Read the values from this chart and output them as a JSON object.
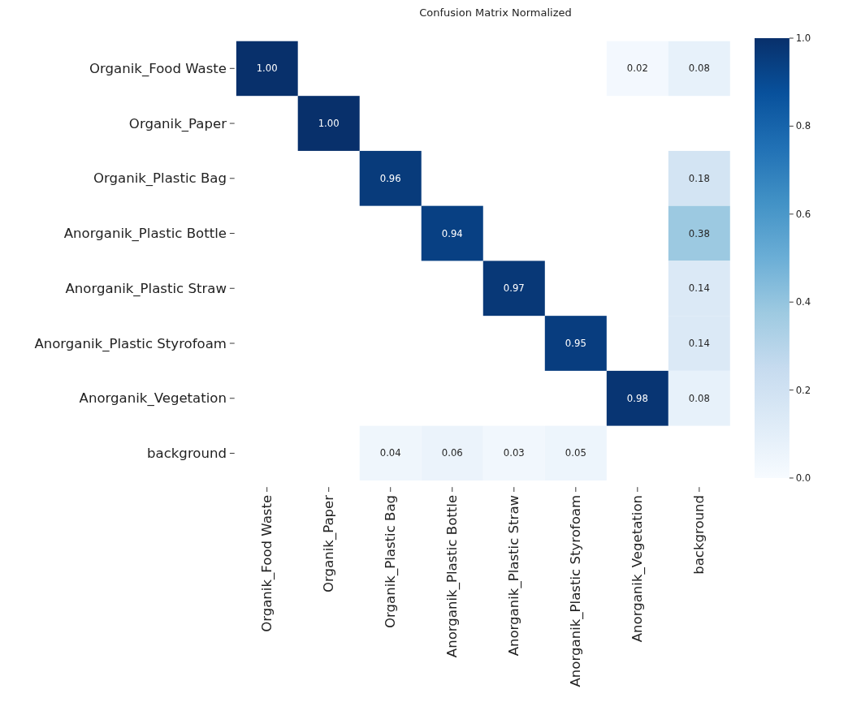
{
  "chart_data": {
    "type": "heatmap",
    "title": "Confusion Matrix Normalized",
    "categories": [
      "Organik_Food Waste",
      "Organik_Paper",
      "Organik_Plastic Bag",
      "Anorganik_Plastic Bottle",
      "Anorganik_Plastic Straw",
      "Anorganik_Plastic Styrofoam",
      "Anorganik_Vegetation",
      "background"
    ],
    "y_categories": [
      "Organik_Food Waste",
      "Organik_Paper",
      "Organik_Plastic Bag",
      "Anorganik_Plastic Bottle",
      "Anorganik_Plastic Straw",
      "Anorganik_Plastic Styrofoam",
      "Anorganik_Vegetation",
      "background"
    ],
    "cells": [
      [
        1.0,
        null,
        null,
        null,
        null,
        null,
        0.02,
        0.08
      ],
      [
        null,
        1.0,
        null,
        null,
        null,
        null,
        null,
        null
      ],
      [
        null,
        null,
        0.96,
        null,
        null,
        null,
        null,
        0.18
      ],
      [
        null,
        null,
        null,
        0.94,
        null,
        null,
        null,
        0.38
      ],
      [
        null,
        null,
        null,
        null,
        0.97,
        null,
        null,
        0.14
      ],
      [
        null,
        null,
        null,
        null,
        null,
        0.95,
        null,
        0.14
      ],
      [
        null,
        null,
        null,
        null,
        null,
        null,
        0.98,
        0.08
      ],
      [
        null,
        null,
        0.04,
        0.06,
        0.03,
        0.05,
        null,
        null
      ]
    ],
    "cell_labels": [
      [
        "1.00",
        null,
        null,
        null,
        null,
        null,
        "0.02",
        "0.08"
      ],
      [
        null,
        "1.00",
        null,
        null,
        null,
        null,
        null,
        null
      ],
      [
        null,
        null,
        "0.96",
        null,
        null,
        null,
        null,
        "0.18"
      ],
      [
        null,
        null,
        null,
        "0.94",
        null,
        null,
        null,
        "0.38"
      ],
      [
        null,
        null,
        null,
        null,
        "0.97",
        null,
        null,
        "0.14"
      ],
      [
        null,
        null,
        null,
        null,
        null,
        "0.95",
        null,
        "0.14"
      ],
      [
        null,
        null,
        null,
        null,
        null,
        null,
        "0.98",
        "0.08"
      ],
      [
        null,
        null,
        "0.04",
        "0.06",
        "0.03",
        "0.05",
        null,
        null
      ]
    ],
    "clim": [
      0,
      1
    ],
    "cticks": [
      {
        "value": 0,
        "label": "0.0"
      },
      0.2,
      0.4,
      0.6,
      0.8,
      {
        "value": 1,
        "label": "1.0"
      }
    ]
  }
}
